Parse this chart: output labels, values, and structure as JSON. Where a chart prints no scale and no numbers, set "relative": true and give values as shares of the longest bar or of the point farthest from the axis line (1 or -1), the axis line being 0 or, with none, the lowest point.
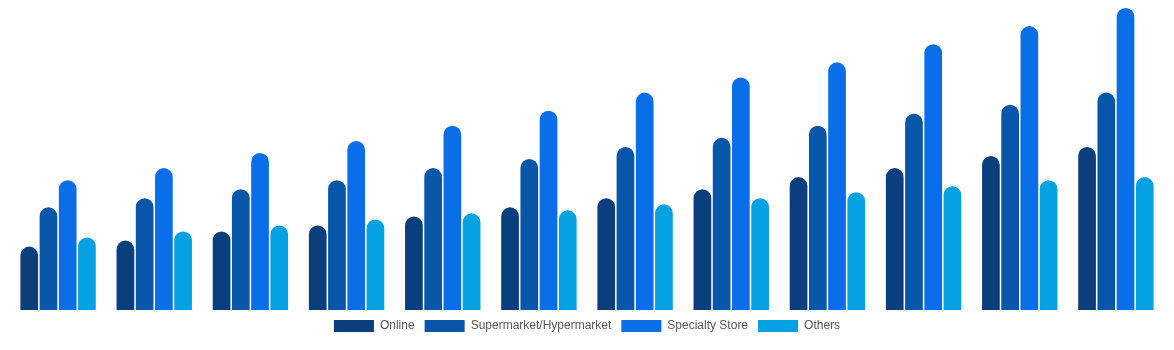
{
  "chart_data": {
    "type": "bar",
    "relative": true,
    "legend": "bottom",
    "categories": [
      null,
      null,
      null,
      null,
      null,
      null,
      null,
      null,
      null,
      null,
      null,
      null
    ],
    "series": [
      {
        "name": "Online",
        "color": "#0b3e7d",
        "values": [
          0.21,
          0.23,
          0.26,
          0.28,
          0.31,
          0.34,
          0.37,
          0.4,
          0.44,
          0.47,
          0.51,
          0.54
        ]
      },
      {
        "name": "Supermarket/Hypermarket",
        "color": "#0756a8",
        "values": [
          0.34,
          0.37,
          0.4,
          0.43,
          0.47,
          0.5,
          0.54,
          0.57,
          0.61,
          0.65,
          0.68,
          0.72
        ]
      },
      {
        "name": "Specialty Store",
        "color": "#0b6ee9",
        "values": [
          0.43,
          0.47,
          0.52,
          0.56,
          0.61,
          0.66,
          0.72,
          0.77,
          0.82,
          0.88,
          0.94,
          1
        ]
      },
      {
        "name": "Others",
        "color": "#04a2e3",
        "values": [
          0.24,
          0.26,
          0.28,
          0.3,
          0.32,
          0.33,
          0.35,
          0.37,
          0.39,
          0.41,
          0.43,
          0.44
        ]
      }
    ]
  }
}
